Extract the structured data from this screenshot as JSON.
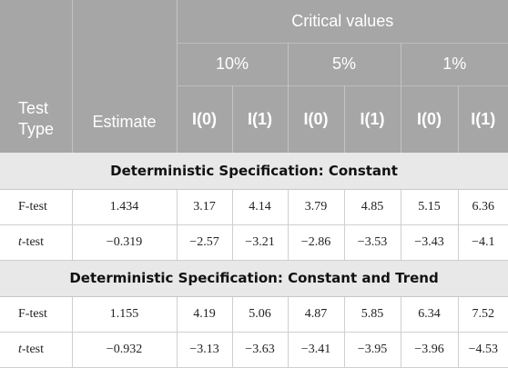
{
  "header": {
    "critical_values": "Critical values",
    "levels": [
      "10%",
      "5%",
      "1%"
    ],
    "test_type_line1": "Test",
    "test_type_line2": "Type",
    "estimate": "Estimate",
    "bounds": [
      "I(0)",
      "I(1)",
      "I(0)",
      "I(1)",
      "I(0)",
      "I(1)"
    ]
  },
  "sections": [
    {
      "title": "Deterministic Specification: Constant",
      "rows": [
        {
          "test_prefix": "F",
          "test_suffix": "-test",
          "prefix_italic": false,
          "estimate": "1.434",
          "values": [
            "3.17",
            "4.14",
            "3.79",
            "4.85",
            "5.15",
            "6.36"
          ]
        },
        {
          "test_prefix": "t",
          "test_suffix": "-test",
          "prefix_italic": true,
          "estimate": "−0.319",
          "values": [
            "−2.57",
            "−3.21",
            "−2.86",
            "−3.53",
            "−3.43",
            "−4.1"
          ]
        }
      ]
    },
    {
      "title": "Deterministic Specification: Constant and Trend",
      "rows": [
        {
          "test_prefix": "F",
          "test_suffix": "-test",
          "prefix_italic": false,
          "estimate": "1.155",
          "values": [
            "4.19",
            "5.06",
            "4.87",
            "5.85",
            "6.34",
            "7.52"
          ]
        },
        {
          "test_prefix": "t",
          "test_suffix": "-test",
          "prefix_italic": true,
          "estimate": "−0.932",
          "values": [
            "−3.13",
            "−3.63",
            "−3.41",
            "−3.95",
            "−3.96",
            "−4.53"
          ]
        }
      ]
    }
  ],
  "colors": {
    "header_bg": "#a6a6a6",
    "section_bg": "#e8e8e8"
  }
}
